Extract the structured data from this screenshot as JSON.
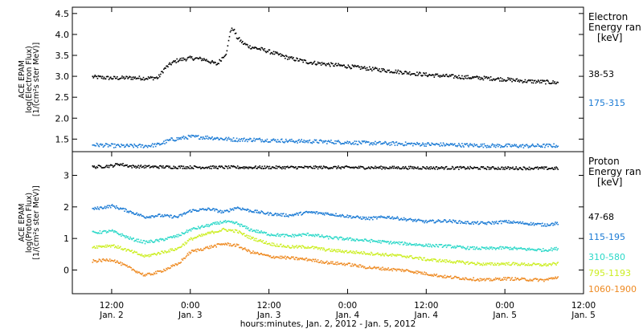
{
  "chart_data": [
    {
      "type": "scatter",
      "panel": "electron",
      "ylabel": [
        "ACE EPAM",
        "log(Electron Flux)",
        "[1/(cm²s ster MeV)]"
      ],
      "ylim": [
        1.2,
        4.65
      ],
      "yticks": [
        "1.5",
        "2.0",
        "2.5",
        "3.0",
        "3.5",
        "4.0",
        "4.5"
      ],
      "legend_title": [
        "Electron",
        "Energy ran",
        "[keV]"
      ],
      "series": [
        {
          "name": "38-53",
          "color": "#000000",
          "x": [
            0,
            6,
            12,
            16,
            20,
            22,
            24,
            26,
            30,
            34,
            38,
            40,
            41,
            42,
            43,
            44,
            46,
            48,
            52,
            56,
            60,
            66,
            72,
            78,
            84,
            90,
            96,
            102,
            108,
            114,
            120,
            126,
            132,
            138,
            142
          ],
          "y": [
            3.0,
            2.97,
            2.98,
            2.97,
            2.98,
            3.2,
            3.32,
            3.4,
            3.45,
            3.42,
            3.3,
            3.5,
            3.6,
            4.1,
            4.15,
            3.95,
            3.8,
            3.72,
            3.65,
            3.55,
            3.45,
            3.35,
            3.3,
            3.25,
            3.2,
            3.15,
            3.1,
            3.05,
            3.02,
            2.99,
            2.97,
            2.94,
            2.9,
            2.88,
            2.86
          ]
        },
        {
          "name": "175-315",
          "color": "#1a7ad4",
          "x": [
            0,
            8,
            16,
            20,
            24,
            30,
            36,
            40,
            44,
            50,
            60,
            72,
            84,
            96,
            108,
            120,
            132,
            142
          ],
          "y": [
            1.38,
            1.35,
            1.35,
            1.38,
            1.5,
            1.57,
            1.55,
            1.52,
            1.5,
            1.5,
            1.47,
            1.45,
            1.42,
            1.4,
            1.38,
            1.36,
            1.35,
            1.36
          ]
        }
      ]
    },
    {
      "type": "scatter",
      "panel": "proton",
      "ylabel": [
        "ACE EPAM",
        "log(Proton Flux)",
        "[1/(cm²s ster MeV)]"
      ],
      "ylim": [
        -0.75,
        3.75
      ],
      "yticks": [
        "0",
        "1",
        "2",
        "3"
      ],
      "legend_title": [
        "Proton",
        "Energy ran",
        "[keV]"
      ],
      "series": [
        {
          "name": "47-68",
          "color": "#000000",
          "x": [
            0,
            6,
            8,
            12,
            24,
            48,
            72,
            96,
            120,
            142
          ],
          "y": [
            3.28,
            3.32,
            3.38,
            3.3,
            3.28,
            3.27,
            3.27,
            3.26,
            3.25,
            3.24
          ]
        },
        {
          "name": "115-195",
          "color": "#1a7ad4",
          "x": [
            0,
            6,
            12,
            16,
            20,
            26,
            30,
            36,
            40,
            44,
            48,
            54,
            60,
            66,
            72,
            78,
            84,
            90,
            96,
            102,
            108,
            114,
            120,
            126,
            132,
            138,
            142
          ],
          "y": [
            1.95,
            2.05,
            1.85,
            1.7,
            1.75,
            1.7,
            1.9,
            1.95,
            1.85,
            2.0,
            1.9,
            1.8,
            1.75,
            1.85,
            1.8,
            1.72,
            1.65,
            1.7,
            1.62,
            1.55,
            1.58,
            1.52,
            1.5,
            1.55,
            1.5,
            1.45,
            1.5
          ]
        },
        {
          "name": "310-580",
          "color": "#2ad8c8",
          "x": [
            0,
            6,
            12,
            16,
            20,
            26,
            30,
            36,
            40,
            44,
            48,
            54,
            60,
            66,
            72,
            78,
            84,
            90,
            96,
            102,
            108,
            114,
            120,
            126,
            132,
            138,
            142
          ],
          "y": [
            1.2,
            1.25,
            1.0,
            0.9,
            0.95,
            1.1,
            1.3,
            1.45,
            1.55,
            1.5,
            1.3,
            1.15,
            1.1,
            1.15,
            1.05,
            1.0,
            0.95,
            0.9,
            0.85,
            0.8,
            0.78,
            0.72,
            0.7,
            0.72,
            0.68,
            0.65,
            0.7
          ]
        },
        {
          "name": "795-1193",
          "color": "#ccee22",
          "x": [
            0,
            6,
            12,
            16,
            20,
            26,
            30,
            36,
            40,
            44,
            48,
            54,
            60,
            66,
            72,
            78,
            84,
            90,
            96,
            102,
            108,
            114,
            120,
            126,
            132,
            138,
            142
          ],
          "y": [
            0.75,
            0.8,
            0.6,
            0.45,
            0.55,
            0.7,
            1.0,
            1.2,
            1.3,
            1.25,
            1.05,
            0.85,
            0.75,
            0.75,
            0.65,
            0.6,
            0.55,
            0.5,
            0.45,
            0.35,
            0.3,
            0.25,
            0.2,
            0.22,
            0.2,
            0.18,
            0.22
          ]
        },
        {
          "name": "1060-1900",
          "color": "#ee8a22",
          "x": [
            0,
            6,
            12,
            16,
            20,
            26,
            30,
            36,
            40,
            44,
            48,
            54,
            60,
            66,
            72,
            78,
            84,
            90,
            96,
            102,
            108,
            114,
            120,
            126,
            132,
            138,
            142
          ],
          "y": [
            0.3,
            0.35,
            0.05,
            -0.15,
            -0.05,
            0.2,
            0.6,
            0.75,
            0.85,
            0.8,
            0.6,
            0.45,
            0.4,
            0.35,
            0.25,
            0.2,
            0.1,
            0.05,
            0.0,
            -0.1,
            -0.2,
            -0.25,
            -0.3,
            -0.25,
            -0.28,
            -0.3,
            -0.2
          ]
        }
      ]
    }
  ],
  "xaxis": {
    "xlim": [
      -6,
      150
    ],
    "ticks": [
      {
        "x": 6,
        "time": "12:00",
        "day": "Jan. 2"
      },
      {
        "x": 30,
        "time": "0:00",
        "day": "Jan. 3"
      },
      {
        "x": 54,
        "time": "12:00",
        "day": "Jan. 3"
      },
      {
        "x": 78,
        "time": "0:00",
        "day": "Jan. 4"
      },
      {
        "x": 102,
        "time": "12:00",
        "day": "Jan. 4"
      },
      {
        "x": 126,
        "time": "0:00",
        "day": "Jan. 5"
      },
      {
        "x": 150,
        "time": "12:00",
        "day": "Jan. 5"
      }
    ],
    "label": "hours:minutes, Jan.  2, 2012 - Jan.  5, 2012"
  }
}
